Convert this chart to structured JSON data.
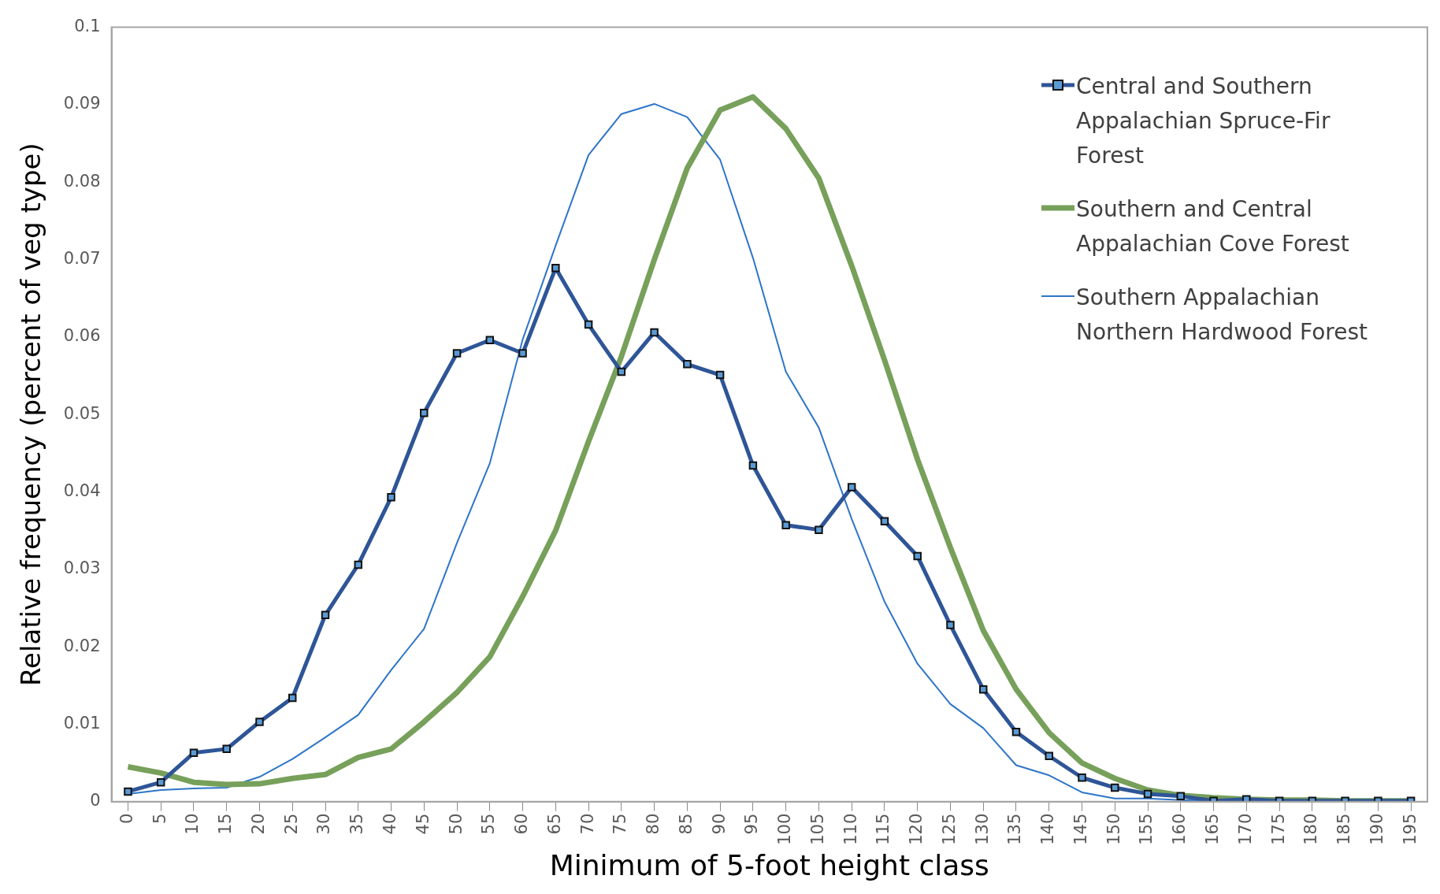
{
  "chart_data": {
    "type": "line",
    "xlabel": "Minimum of 5-foot height class",
    "ylabel": "Relative frequency (percent of veg type)",
    "categories": [
      "0",
      "5",
      "10",
      "15",
      "20",
      "25",
      "30",
      "35",
      "40",
      "45",
      "50",
      "55",
      "60",
      "65",
      "70",
      "75",
      "80",
      "85",
      "90",
      "95",
      "100",
      "105",
      "110",
      "115",
      "120",
      "125",
      "130",
      "135",
      "140",
      "145",
      "150",
      "155",
      "160",
      "165",
      "170",
      "175",
      "180",
      "185",
      "190",
      "195"
    ],
    "series": [
      {
        "name": "Central and Southern Appalachian Spruce-Fir Forest",
        "color": "#2e5597",
        "marker": "square",
        "values": [
          0.0013,
          0.0025,
          0.0063,
          0.0068,
          0.0103,
          0.0134,
          0.0241,
          0.0306,
          0.0393,
          0.0502,
          0.0579,
          0.0596,
          0.0579,
          0.0689,
          0.0616,
          0.0555,
          0.0606,
          0.0565,
          0.0551,
          0.0434,
          0.0357,
          0.0351,
          0.0406,
          0.0362,
          0.0317,
          0.0228,
          0.0145,
          0.009,
          0.0059,
          0.0031,
          0.0018,
          0.001,
          0.0007,
          0.0001,
          0.0003,
          0.0001,
          0.0001,
          0.0001,
          0.0001,
          0.0001
        ]
      },
      {
        "name": "Southern and Central Appalachian Cove Forest",
        "color": "#77a05a",
        "marker": "none",
        "values": [
          0.0045,
          0.0037,
          0.0025,
          0.0022,
          0.0023,
          0.003,
          0.0035,
          0.0057,
          0.0068,
          0.0103,
          0.0141,
          0.0187,
          0.0265,
          0.035,
          0.0465,
          0.0575,
          0.07,
          0.0818,
          0.0893,
          0.091,
          0.0869,
          0.0805,
          0.0692,
          0.057,
          0.0442,
          0.0328,
          0.0221,
          0.0145,
          0.0089,
          0.005,
          0.003,
          0.0015,
          0.0008,
          0.0005,
          0.0003,
          0.0002,
          0.0002,
          0.0001,
          0.0001,
          0.0001
        ]
      },
      {
        "name": "Southern Appalachian Northern Hardwood Forest",
        "color": "#2e75c8",
        "marker": "none",
        "values": [
          0.001,
          0.0015,
          0.0017,
          0.0018,
          0.0032,
          0.0055,
          0.0083,
          0.0112,
          0.017,
          0.0223,
          0.0334,
          0.0437,
          0.0597,
          0.0718,
          0.0835,
          0.0888,
          0.0901,
          0.0884,
          0.0829,
          0.0702,
          0.0555,
          0.0483,
          0.0365,
          0.0258,
          0.0178,
          0.0126,
          0.0095,
          0.0047,
          0.0034,
          0.0012,
          0.0004,
          0.0004,
          0.0002,
          0.0001,
          0.0001,
          0.0001,
          0.0001,
          0.0001,
          0.0001,
          0.0001
        ]
      }
    ],
    "ylim": [
      0,
      0.1
    ],
    "yticks": [
      0,
      0.01,
      0.02,
      0.03,
      0.04,
      0.05,
      0.06,
      0.07,
      0.08,
      0.09,
      0.1
    ],
    "grid": false,
    "legend": "top right"
  }
}
